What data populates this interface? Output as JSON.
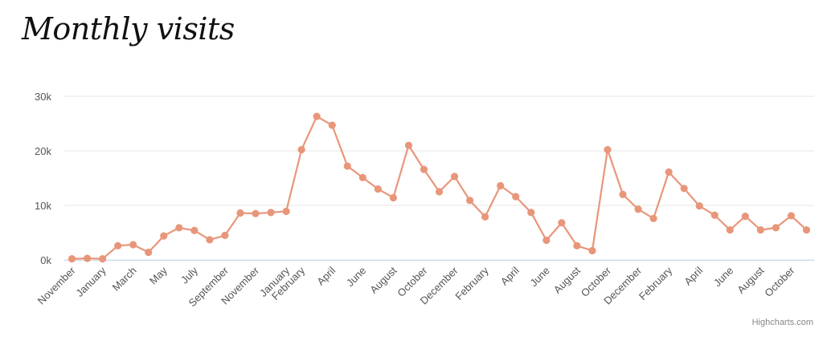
{
  "chart_data": {
    "type": "line",
    "title": "Monthly visits",
    "xlabel": "",
    "ylabel": "",
    "ylim": [
      0,
      30000
    ],
    "y_ticks": [
      {
        "value": 0,
        "label": "0k"
      },
      {
        "value": 10000,
        "label": "10k"
      },
      {
        "value": 20000,
        "label": "20k"
      },
      {
        "value": 30000,
        "label": "30k"
      }
    ],
    "x_tick_labels": [
      {
        "index": 0,
        "label": "November"
      },
      {
        "index": 2,
        "label": "January"
      },
      {
        "index": 4,
        "label": "March"
      },
      {
        "index": 6,
        "label": "May"
      },
      {
        "index": 8,
        "label": "July"
      },
      {
        "index": 10,
        "label": "September"
      },
      {
        "index": 12,
        "label": "November"
      },
      {
        "index": 14,
        "label": "January"
      },
      {
        "index": 15,
        "label": "February"
      },
      {
        "index": 17,
        "label": "April"
      },
      {
        "index": 19,
        "label": "June"
      },
      {
        "index": 21,
        "label": "August"
      },
      {
        "index": 23,
        "label": "October"
      },
      {
        "index": 25,
        "label": "December"
      },
      {
        "index": 27,
        "label": "February"
      },
      {
        "index": 29,
        "label": "April"
      },
      {
        "index": 31,
        "label": "June"
      },
      {
        "index": 33,
        "label": "August"
      },
      {
        "index": 35,
        "label": "October"
      },
      {
        "index": 37,
        "label": "December"
      },
      {
        "index": 39,
        "label": "February"
      },
      {
        "index": 41,
        "label": "April"
      },
      {
        "index": 43,
        "label": "June"
      },
      {
        "index": 45,
        "label": "August"
      },
      {
        "index": 47,
        "label": "October"
      }
    ],
    "series": [
      {
        "values": [
          200,
          300,
          200,
          2600,
          2800,
          1400,
          4400,
          5900,
          5400,
          3700,
          4500,
          8600,
          8500,
          8700,
          8900,
          20200,
          26300,
          24700,
          17200,
          15100,
          13000,
          11400,
          21000,
          16600,
          12500,
          15300,
          10900,
          7900,
          13600,
          11600,
          8700,
          3600,
          6800,
          2600,
          1700,
          20200,
          12000,
          9300,
          7600,
          16100,
          13100,
          9900,
          8200,
          5500,
          8000,
          5500,
          5900,
          8100,
          5500
        ],
        "color": "#e8967a"
      }
    ],
    "grid": true,
    "legend": "none"
  },
  "credit": "Highcharts.com"
}
